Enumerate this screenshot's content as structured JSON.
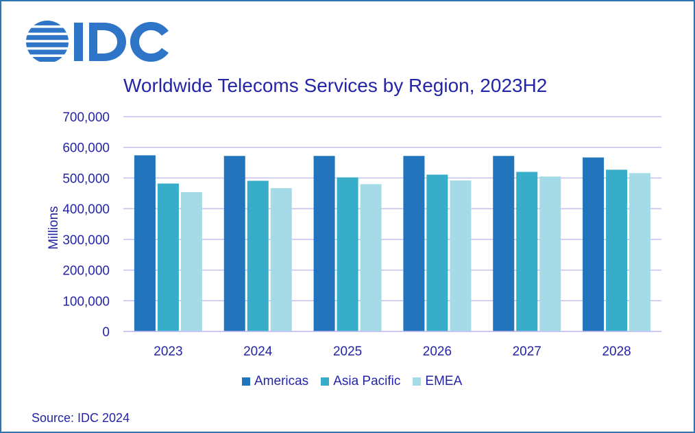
{
  "logo": {
    "text": "IDC",
    "color": "#2e75c8"
  },
  "source": "Source: IDC 2024",
  "colors": {
    "frame": "#2e75b6",
    "text": "#2424a6",
    "grid": "#c4bff0"
  },
  "chart_data": {
    "type": "bar",
    "title": "Worldwide Telecoms Services by Region, 2023H2",
    "xlabel": "",
    "ylabel": "Millions",
    "ylim": [
      0,
      700000
    ],
    "yticks": [
      0,
      100000,
      200000,
      300000,
      400000,
      500000,
      600000,
      700000
    ],
    "ytick_labels": [
      "0",
      "100,000",
      "200,000",
      "300,000",
      "400,000",
      "500,000",
      "600,000",
      "700,000"
    ],
    "categories": [
      "2023",
      "2024",
      "2025",
      "2026",
      "2027",
      "2028"
    ],
    "series": [
      {
        "name": "Americas",
        "color": "#2275bd",
        "values": [
          574000,
          572000,
          572000,
          572000,
          572000,
          567000
        ]
      },
      {
        "name": "Asia Pacific",
        "color": "#37adc9",
        "values": [
          482000,
          491000,
          502000,
          511000,
          520000,
          527000
        ]
      },
      {
        "name": "EMEA",
        "color": "#a4dbe6",
        "values": [
          454000,
          467000,
          480000,
          492000,
          505000,
          516000
        ]
      }
    ],
    "grid": true,
    "legend": "bottom"
  }
}
